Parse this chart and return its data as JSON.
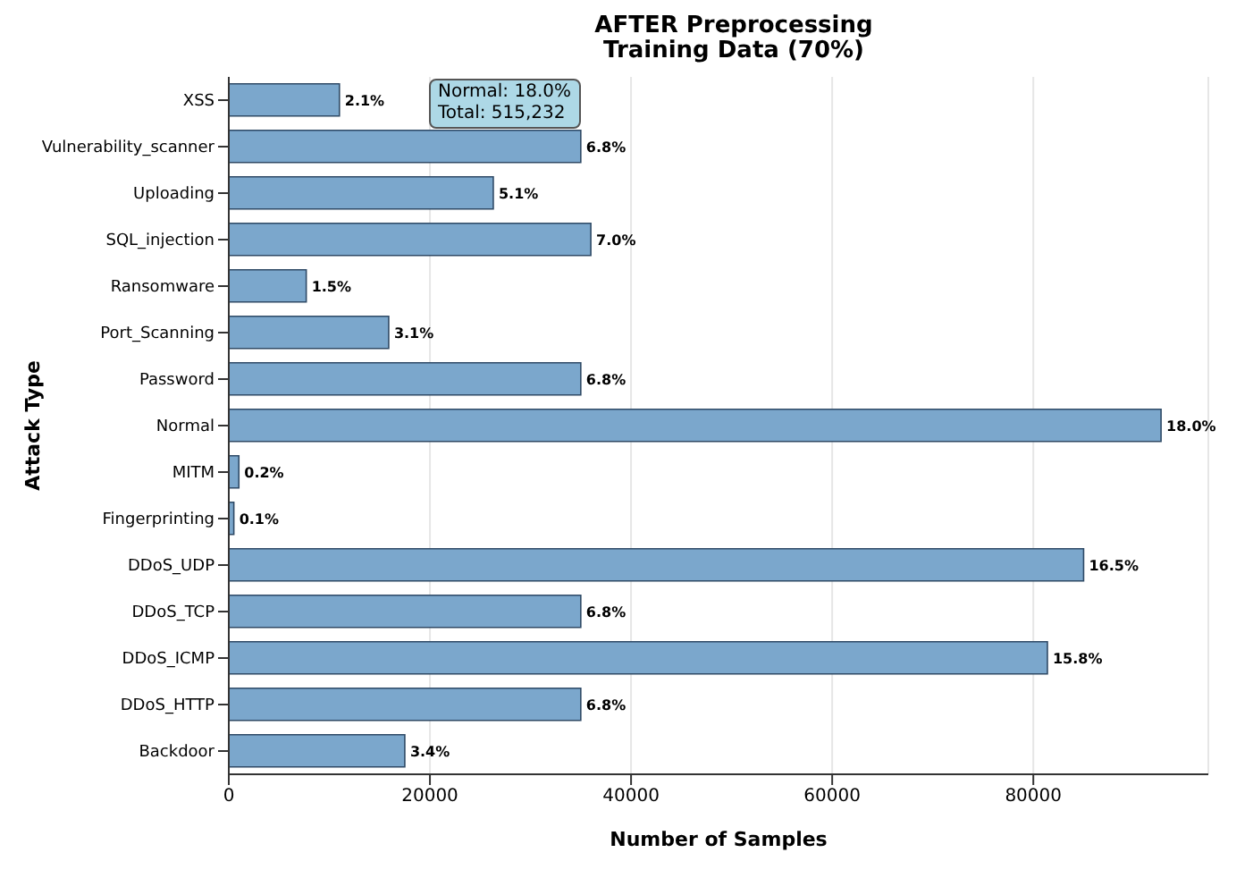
{
  "chart_data": {
    "type": "bar",
    "orientation": "horizontal",
    "title": "AFTER Preprocessing\nTraining Data (70%)",
    "xlabel": "Number of Samples",
    "ylabel": "Attack Type",
    "categories": [
      "XSS",
      "Vulnerability_scanner",
      "Uploading",
      "SQL_injection",
      "Ransomware",
      "Port_Scanning",
      "Password",
      "Normal",
      "MITM",
      "Fingerprinting",
      "DDoS_UDP",
      "DDoS_TCP",
      "DDoS_ICMP",
      "DDoS_HTTP",
      "Backdoor"
    ],
    "values": [
      11000,
      35000,
      26300,
      36000,
      7700,
      15900,
      35000,
      92700,
      1000,
      500,
      85000,
      35000,
      81400,
      35000,
      17500
    ],
    "color": "#7ba7cc",
    "xlim": [
      0,
      97400
    ],
    "xticks": [
      0,
      20000,
      40000,
      60000,
      80000
    ],
    "grid": "x",
    "annotations": [
      "Normal: 18.0%\nTotal: 515,232",
      {
        "text": "2.1%",
        "x": 11000,
        "y": "XSS"
      },
      {
        "text": "6.8%",
        "x": 35000,
        "y": "Vulnerability_scanner"
      },
      {
        "text": "5.1%",
        "x": 26300,
        "y": "Uploading"
      },
      {
        "text": "7.0%",
        "x": 36000,
        "y": "SQL_injection"
      },
      {
        "text": "1.5%",
        "x": 7700,
        "y": "Ransomware"
      },
      {
        "text": "3.1%",
        "x": 15900,
        "y": "Port_Scanning"
      },
      {
        "text": "6.8%",
        "x": 35000,
        "y": "Password"
      },
      {
        "text": "18.0%",
        "x": 92700,
        "y": "Normal"
      },
      {
        "text": "0.2%",
        "x": 1000,
        "y": "MITM"
      },
      {
        "text": "0.1%",
        "x": 500,
        "y": "Fingerprinting"
      },
      {
        "text": "16.5%",
        "x": 85000,
        "y": "DDoS_UDP"
      },
      {
        "text": "6.8%",
        "x": 35000,
        "y": "DDoS_TCP"
      },
      {
        "text": "15.8%",
        "x": 81400,
        "y": "DDoS_ICMP"
      },
      {
        "text": "6.8%",
        "x": 35000,
        "y": "DDoS_HTTP"
      },
      {
        "text": "3.4%",
        "x": 17500,
        "y": "Backdoor"
      }
    ]
  }
}
